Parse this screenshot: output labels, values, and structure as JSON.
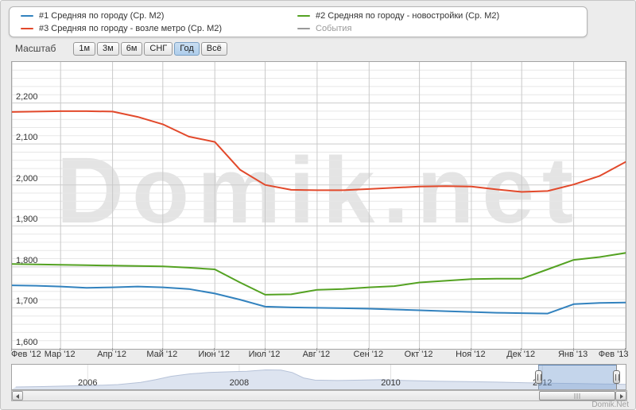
{
  "legend": {
    "items": [
      {
        "label": "#1 Средняя по городу (Ср. М2)",
        "color": "#3282be"
      },
      {
        "label": "#3 Средняя по городу - возле метро (Ср. М2)",
        "color": "#e2492b"
      },
      {
        "label": "#2 Средняя по городу - новостройки (Ср. М2)",
        "color": "#54a222"
      },
      {
        "label": "События",
        "color": "#999999"
      }
    ]
  },
  "toolbar": {
    "label": "Масштаб",
    "buttons": [
      {
        "label": "1м",
        "selected": false
      },
      {
        "label": "3м",
        "selected": false
      },
      {
        "label": "6м",
        "selected": false
      },
      {
        "label": "СНГ",
        "selected": false
      },
      {
        "label": "Год",
        "selected": true
      },
      {
        "label": "Всё",
        "selected": false
      }
    ]
  },
  "watermark": "Domik.net",
  "credit": "Domik.Net",
  "chart_data": {
    "type": "line",
    "title": "",
    "x_labels": [
      "Фев '12",
      "Мар '12",
      "Апр '12",
      "Май '12",
      "Июн '12",
      "Июл '12",
      "Авг '12",
      "Сен '12",
      "Окт '12",
      "Ноя '12",
      "Дек '12",
      "Янв '13",
      "Фев '13"
    ],
    "month_days": [
      29,
      31,
      30,
      31,
      30,
      31,
      31,
      30,
      31,
      30,
      31,
      31
    ],
    "ylim": [
      1600,
      2300
    ],
    "y_ticks": [
      {
        "v": 1600,
        "label": "1,600"
      },
      {
        "v": 1700,
        "label": "1,700"
      },
      {
        "v": 1800,
        "label": "1,800"
      },
      {
        "v": 1900,
        "label": "1,900"
      },
      {
        "v": 2000,
        "label": "2,000"
      },
      {
        "v": 2100,
        "label": "2,100"
      },
      {
        "v": 2200,
        "label": "2,200"
      }
    ],
    "minor_step": 20,
    "major_step": 100,
    "grid": true,
    "legend_position": "top",
    "x_step_months": 0.5,
    "series": [
      {
        "name": "#1 Средняя по городу (Ср. М2)",
        "color": "#3282be",
        "values": [
          1755,
          1754,
          1752,
          1749,
          1750,
          1752,
          1750,
          1746,
          1735,
          1720,
          1703,
          1701,
          1700,
          1699,
          1698,
          1696,
          1694,
          1692,
          1690,
          1688,
          1687,
          1686,
          1709,
          1712,
          1713
        ]
      },
      {
        "name": "#2 Средняя по городу - новостройки (Ср. М2)",
        "color": "#54a222",
        "values": [
          1807,
          1806,
          1805,
          1804,
          1803,
          1802,
          1801,
          1798,
          1794,
          1762,
          1732,
          1733,
          1744,
          1746,
          1750,
          1753,
          1762,
          1766,
          1770,
          1771,
          1771,
          1794,
          1817,
          1824,
          1834
        ]
      },
      {
        "name": "#3 Средняя по городу - возле метро (Ср. М2)",
        "color": "#e2492b",
        "values": [
          2178,
          2179,
          2180,
          2180,
          2179,
          2166,
          2148,
          2118,
          2105,
          2037,
          2000,
          1988,
          1987,
          1987,
          1990,
          1993,
          1996,
          1997,
          1996,
          1989,
          1983,
          1985,
          2001,
          2022,
          2056
        ]
      },
      {
        "name": "События",
        "color": "#999999",
        "values": []
      }
    ],
    "navigator": {
      "x_range": [
        2005.0,
        2013.1
      ],
      "year_labels": [
        {
          "label": "2006",
          "year": 2006
        },
        {
          "label": "2008",
          "year": 2008
        },
        {
          "label": "2010",
          "year": 2010
        },
        {
          "label": "2012",
          "year": 2012
        }
      ],
      "area_points_norm": [
        [
          2005.05,
          0.07
        ],
        [
          2005.4,
          0.09
        ],
        [
          2005.8,
          0.12
        ],
        [
          2006.1,
          0.14
        ],
        [
          2006.4,
          0.18
        ],
        [
          2006.7,
          0.28
        ],
        [
          2006.9,
          0.4
        ],
        [
          2007.1,
          0.55
        ],
        [
          2007.35,
          0.66
        ],
        [
          2007.6,
          0.72
        ],
        [
          2007.9,
          0.76
        ],
        [
          2008.1,
          0.78
        ],
        [
          2008.35,
          0.84
        ],
        [
          2008.55,
          0.83
        ],
        [
          2008.7,
          0.72
        ],
        [
          2008.85,
          0.48
        ],
        [
          2009.0,
          0.38
        ],
        [
          2009.3,
          0.36
        ],
        [
          2009.6,
          0.38
        ],
        [
          2009.9,
          0.4
        ],
        [
          2010.2,
          0.36
        ],
        [
          2010.6,
          0.33
        ],
        [
          2011.0,
          0.31
        ],
        [
          2011.4,
          0.29
        ],
        [
          2011.8,
          0.26
        ],
        [
          2012.1,
          0.24
        ],
        [
          2012.5,
          0.22
        ],
        [
          2012.9,
          0.2
        ],
        [
          2013.1,
          0.19
        ]
      ],
      "selection_years": [
        2012.08,
        2013.08
      ]
    }
  }
}
